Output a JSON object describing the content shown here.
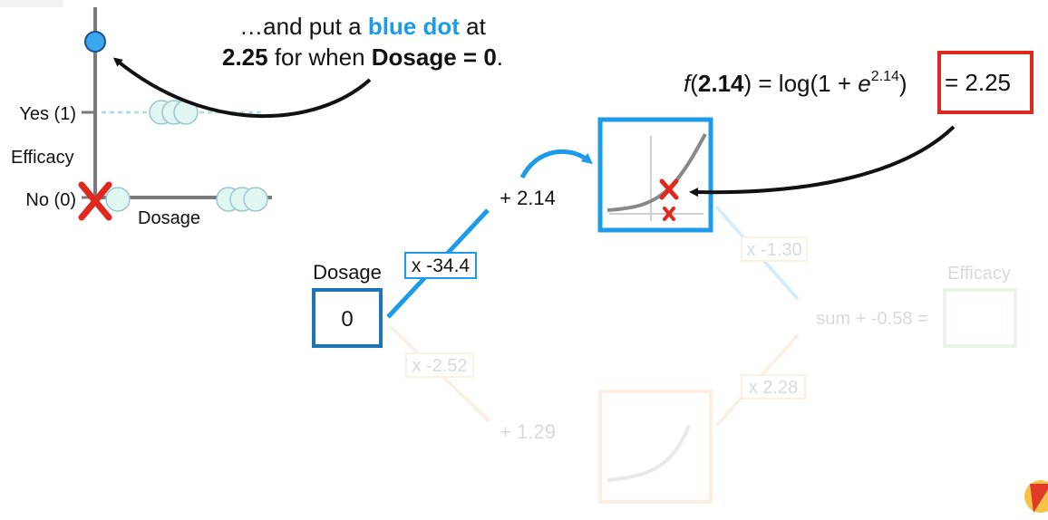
{
  "caption": {
    "line1_pre": "…and put a ",
    "line1_emph": "blue dot",
    "line1_post": " at",
    "line2_value": "2.25",
    "line2_mid": " for when ",
    "line2_bold": "Dosage = 0",
    "line2_end": "."
  },
  "formula": {
    "f": "f",
    "arg": "2.14",
    "mid": ") = log(1 + ",
    "e": "e",
    "exp": "2.14",
    "close": ")",
    "result": "= 2.25"
  },
  "graph": {
    "yes_label": "Yes (1)",
    "no_label": "No (0)",
    "y_axis_label": "Efficacy",
    "x_axis_label": "Dosage"
  },
  "network": {
    "input_label": "Dosage",
    "input_value": "0",
    "top_weight": "x -34.4",
    "top_bias": "+ 2.14",
    "bottom_weight": "x -2.52",
    "bottom_bias": "+ 1.29",
    "top_out_weight": "x -1.30",
    "bottom_out_weight": "x 2.28",
    "sum_text": "sum + -0.58 =",
    "output_label": "Efficacy"
  },
  "colors": {
    "accent_blue": "#1c9bea",
    "box_blue": "#1b76b8",
    "highlight_red": "#e0281f",
    "faint_orange": "#f3b171",
    "faint_green": "#8ccf80",
    "axis_gray": "#7a7a7a"
  }
}
